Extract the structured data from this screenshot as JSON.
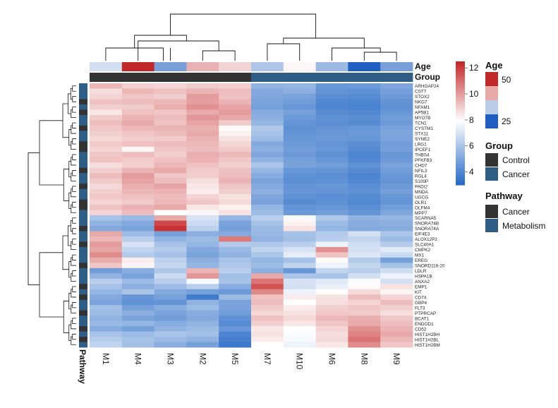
{
  "chart_data": {
    "type": "heatmap",
    "columns": [
      "M1",
      "M4",
      "M3",
      "M2",
      "M5",
      "M7",
      "M10",
      "M6",
      "M8",
      "M9"
    ],
    "rows": [
      "ARHGAP24",
      "CST7",
      "STOX2",
      "NKG7",
      "NFAM1",
      "AP5B1",
      "MYO7B",
      "TCN1",
      "CYSTM1",
      "STX11",
      "SYNE2",
      "LRG1",
      "IPCEF1",
      "THBS4",
      "PFKFB3",
      "CHD7",
      "NFIL3",
      "RGL4",
      "S100P",
      "PADI2",
      "MNDA",
      "UGCG",
      "OLR1",
      "OLFM4",
      "MPP7",
      "SCARNA5",
      "SNORA74B",
      "SNORA74A",
      "EIF4E3",
      "ALOX12P2",
      "SLC40A1",
      "CMPK2",
      "MX1",
      "EREG",
      "SNORD116-20",
      "LDLR",
      "HSPA1B",
      "ANXA2",
      "EMP1",
      "KIT",
      "CD74",
      "GBP4",
      "FLT3",
      "PTPRCAP",
      "BCAT1",
      "ENDOD1",
      "CD52",
      "HIST1H2BH",
      "HIST1H2BL",
      "HIST1H2BM"
    ],
    "values": [
      [
        9.5,
        9.0,
        8.9,
        9.1,
        9.0,
        5.5,
        5.6,
        4.6,
        4.7,
        5.1
      ],
      [
        8.7,
        9.5,
        9.3,
        9.6,
        9.4,
        5.2,
        5.4,
        4.5,
        4.4,
        4.9
      ],
      [
        8.9,
        9.2,
        9.0,
        10.1,
        9.3,
        5.1,
        5.0,
        4.3,
        4.2,
        4.7
      ],
      [
        9.3,
        9.4,
        9.5,
        10.0,
        9.6,
        5.0,
        4.8,
        4.1,
        4.0,
        4.5
      ],
      [
        9.0,
        9.1,
        9.7,
        10.3,
        9.9,
        4.9,
        4.6,
        4.0,
        3.9,
        4.4
      ],
      [
        8.5,
        9.3,
        9.2,
        9.8,
        10.1,
        5.3,
        4.9,
        4.2,
        4.1,
        4.6
      ],
      [
        9.1,
        9.6,
        9.4,
        10.2,
        9.8,
        5.4,
        4.7,
        4.4,
        4.3,
        4.8
      ],
      [
        9.4,
        9.8,
        9.3,
        9.9,
        9.1,
        5.6,
        4.5,
        4.3,
        4.2,
        4.7
      ],
      [
        9.2,
        9.5,
        9.6,
        9.7,
        8.1,
        6.2,
        4.4,
        4.5,
        4.6,
        5.0
      ],
      [
        9.0,
        9.2,
        9.4,
        9.8,
        8.3,
        6.0,
        4.5,
        4.6,
        4.7,
        5.1
      ],
      [
        8.8,
        9.0,
        9.1,
        9.6,
        8.6,
        5.8,
        4.6,
        4.7,
        4.6,
        5.0
      ],
      [
        9.1,
        9.3,
        9.4,
        9.5,
        8.9,
        5.2,
        4.7,
        4.5,
        4.3,
        4.8
      ],
      [
        8.9,
        8.2,
        9.2,
        9.4,
        9.1,
        5.4,
        4.8,
        4.6,
        4.2,
        4.9
      ],
      [
        9.2,
        9.4,
        9.0,
        9.7,
        9.5,
        5.1,
        4.7,
        4.4,
        4.0,
        4.6
      ],
      [
        9.3,
        9.1,
        9.3,
        9.6,
        9.2,
        5.5,
        4.9,
        4.6,
        4.1,
        4.7
      ],
      [
        8.7,
        9.0,
        9.5,
        9.3,
        9.0,
        6.1,
        5.0,
        4.8,
        4.4,
        5.0
      ],
      [
        9.0,
        9.6,
        9.8,
        9.1,
        9.3,
        5.6,
        4.6,
        4.5,
        4.2,
        4.8
      ],
      [
        9.4,
        10.1,
        9.2,
        9.0,
        9.4,
        5.3,
        4.4,
        4.3,
        4.0,
        4.6
      ],
      [
        9.1,
        9.9,
        9.4,
        8.7,
        9.6,
        5.0,
        4.3,
        4.4,
        4.1,
        4.5
      ],
      [
        8.8,
        9.7,
        9.9,
        8.5,
        9.2,
        5.2,
        4.5,
        4.6,
        4.3,
        4.7
      ],
      [
        9.0,
        9.5,
        9.6,
        8.4,
        9.0,
        5.4,
        4.6,
        4.5,
        4.4,
        4.9
      ],
      [
        9.2,
        9.3,
        9.4,
        8.9,
        8.6,
        5.1,
        4.4,
        4.3,
        4.2,
        4.6
      ],
      [
        8.9,
        9.1,
        9.5,
        9.2,
        8.8,
        5.0,
        4.2,
        4.4,
        4.1,
        4.5
      ],
      [
        9.3,
        9.6,
        9.8,
        8.5,
        8.3,
        5.6,
        4.5,
        4.6,
        4.3,
        4.8
      ],
      [
        8.9,
        9.4,
        8.0,
        8.2,
        8.6,
        5.8,
        4.7,
        4.8,
        4.5,
        5.1
      ],
      [
        6.0,
        5.7,
        9.8,
        7.1,
        5.6,
        6.4,
        7.9,
        6.2,
        5.5,
        5.6
      ],
      [
        5.5,
        5.2,
        11.8,
        6.8,
        5.0,
        6.0,
        8.3,
        5.8,
        5.3,
        5.4
      ],
      [
        5.2,
        5.0,
        12.3,
        6.5,
        4.9,
        5.8,
        8.6,
        5.6,
        5.2,
        5.3
      ],
      [
        9.8,
        5.8,
        4.9,
        5.4,
        5.2,
        5.7,
        6.0,
        6.3,
        7.0,
        6.1
      ],
      [
        9.5,
        6.4,
        5.5,
        5.8,
        10.8,
        5.5,
        5.9,
        6.4,
        6.6,
        5.8
      ],
      [
        10.1,
        7.1,
        6.0,
        5.6,
        6.3,
        6.2,
        6.4,
        7.6,
        6.9,
        6.3
      ],
      [
        9.9,
        6.6,
        6.3,
        5.2,
        5.7,
        6.6,
        7.1,
        10.3,
        7.0,
        7.3
      ],
      [
        10.4,
        6.3,
        6.0,
        5.0,
        5.5,
        6.1,
        7.4,
        9.3,
        7.2,
        6.8
      ],
      [
        9.7,
        8.4,
        6.5,
        5.4,
        6.0,
        5.6,
        6.0,
        8.1,
        6.3,
        4.9
      ],
      [
        9.2,
        8.2,
        6.7,
        5.6,
        6.2,
        5.8,
        6.6,
        7.6,
        6.7,
        6.0
      ],
      [
        4.8,
        5.3,
        6.2,
        9.6,
        6.4,
        5.4,
        4.6,
        6.6,
        6.4,
        6.9
      ],
      [
        5.5,
        5.0,
        6.8,
        10.2,
        5.9,
        9.8,
        6.1,
        6.0,
        7.0,
        7.6
      ],
      [
        6.4,
        5.8,
        6.4,
        7.8,
        6.0,
        10.9,
        7.1,
        7.3,
        7.9,
        7.0
      ],
      [
        6.0,
        5.4,
        5.8,
        6.4,
        5.3,
        11.6,
        7.0,
        7.5,
        8.1,
        8.6
      ],
      [
        5.6,
        6.1,
        5.2,
        4.9,
        4.7,
        10.5,
        7.6,
        8.0,
        8.8,
        8.2
      ],
      [
        5.2,
        4.6,
        4.9,
        3.7,
        5.8,
        9.3,
        8.4,
        8.6,
        9.4,
        8.9
      ],
      [
        5.0,
        4.4,
        4.5,
        5.5,
        5.0,
        9.4,
        8.0,
        8.7,
        8.9,
        9.4
      ],
      [
        5.9,
        4.9,
        5.3,
        5.8,
        5.0,
        9.1,
        8.4,
        9.0,
        9.2,
        9.0
      ],
      [
        5.8,
        5.4,
        5.0,
        5.3,
        4.8,
        8.8,
        8.6,
        9.2,
        9.1,
        8.7
      ],
      [
        5.5,
        5.0,
        4.8,
        5.2,
        4.4,
        9.3,
        8.8,
        9.5,
        9.7,
        9.2
      ],
      [
        5.7,
        5.6,
        5.3,
        5.5,
        4.2,
        9.0,
        8.5,
        9.2,
        9.8,
        9.4
      ],
      [
        5.3,
        4.9,
        5.5,
        5.8,
        4.6,
        8.5,
        8.0,
        8.9,
        10.3,
        9.6
      ],
      [
        6.0,
        5.8,
        6.1,
        5.9,
        4.0,
        8.6,
        7.9,
        8.7,
        10.6,
        9.8
      ],
      [
        6.3,
        6.0,
        5.8,
        5.5,
        3.8,
        8.4,
        7.8,
        8.8,
        10.9,
        9.5
      ],
      [
        6.6,
        5.9,
        5.4,
        4.9,
        3.6,
        8.0,
        7.6,
        8.5,
        10.4,
        9.2
      ]
    ],
    "row_pathway": [
      "Metabolism",
      "Metabolism",
      "Metabolism",
      "Cancer",
      "Metabolism",
      "Cancer",
      "Metabolism",
      "Metabolism",
      "Cancer",
      "Metabolism",
      "Metabolism",
      "Cancer",
      "Cancer",
      "Metabolism",
      "Metabolism",
      "Metabolism",
      "Cancer",
      "Metabolism",
      "Metabolism",
      "Cancer",
      "Metabolism",
      "Metabolism",
      "Cancer",
      "Cancer",
      "Metabolism",
      "Metabolism",
      "Metabolism",
      "Cancer",
      "Metabolism",
      "Metabolism",
      "Cancer",
      "Metabolism",
      "Metabolism",
      "Metabolism",
      "Cancer",
      "Metabolism",
      "Metabolism",
      "Metabolism",
      "Cancer",
      "Metabolism",
      "Cancer",
      "Metabolism",
      "Metabolism",
      "Cancer",
      "Metabolism",
      "Metabolism",
      "Cancer",
      "Metabolism",
      "Cancer",
      "Metabolism"
    ],
    "col_age": [
      35,
      50,
      30,
      42,
      40,
      33,
      38,
      32,
      25,
      30
    ],
    "col_group": [
      "Control",
      "Control",
      "Control",
      "Control",
      "Control",
      "Cancer",
      "Cancer",
      "Cancer",
      "Cancer",
      "Cancer"
    ],
    "color_scale": {
      "min": 3,
      "mid": 8,
      "max": 12.5,
      "low_color": "#2166c4",
      "mid_color": "#ffffff",
      "high_color": "#c62828"
    },
    "age_scale": {
      "min": 25,
      "max": 50,
      "low_color": "#1f5fbf",
      "high_color": "#c0282a"
    },
    "group_colors": {
      "Control": "#333333",
      "Cancer": "#2e5e86"
    },
    "pathway_colors": {
      "Cancer": "#333333",
      "Metabolism": "#2e5e86"
    },
    "annotations": {
      "age_label": "Age",
      "group_label": "Group",
      "pathway_label": "Pathway"
    },
    "legend": {
      "colorbar_ticks": [
        "12",
        "10",
        "8",
        "6",
        "4"
      ],
      "age_title": "Age",
      "age_ticks": [
        "50",
        "25"
      ],
      "group_title": "Group",
      "group_items": [
        "Control",
        "Cancer"
      ],
      "pathway_title": "Pathway",
      "pathway_items": [
        "Cancer",
        "Metabolism"
      ]
    }
  }
}
